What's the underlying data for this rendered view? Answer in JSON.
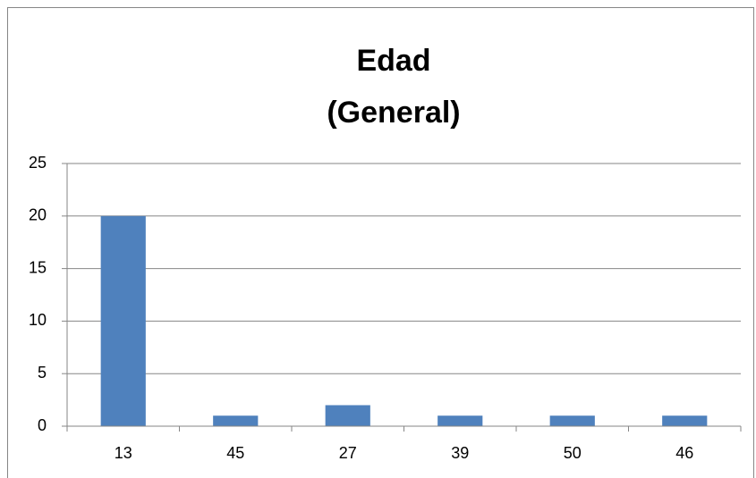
{
  "chart_data": {
    "type": "bar",
    "title": [
      "Edad",
      "(General)"
    ],
    "categories": [
      "13",
      "45",
      "27",
      "39",
      "50",
      "46"
    ],
    "values": [
      20,
      1,
      2,
      1,
      1,
      1
    ],
    "color": "#4f81bd",
    "ylim": [
      0,
      25
    ],
    "yticks": [
      0,
      5,
      10,
      15,
      20,
      25
    ],
    "grid": true
  }
}
